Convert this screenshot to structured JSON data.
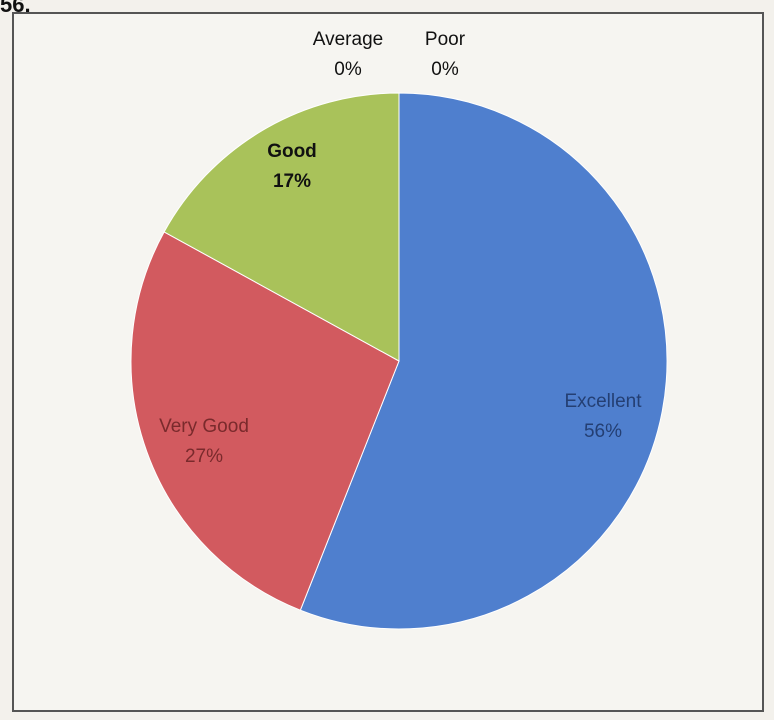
{
  "corner_text": "56.",
  "chart_data": {
    "type": "pie",
    "title": "",
    "slices": [
      {
        "label": "Excellent",
        "value": 56,
        "display": "56%",
        "color": "#4f7fce",
        "text_color": "#243f73"
      },
      {
        "label": "Very Good",
        "value": 27,
        "display": "27%",
        "color": "#d25a5f",
        "text_color": "#7a2a2c"
      },
      {
        "label": "Good",
        "value": 17,
        "display": "17%",
        "color": "#a9c25a",
        "text_color": "#111111"
      },
      {
        "label": "Average",
        "value": 0,
        "display": "0%",
        "color": "#7e5aa8",
        "text_color": "#111111"
      },
      {
        "label": "Poor",
        "value": 0,
        "display": "0%",
        "color": "#48a9c5",
        "text_color": "#111111"
      }
    ],
    "start_angle_deg": 0,
    "direction": "clockwise"
  }
}
